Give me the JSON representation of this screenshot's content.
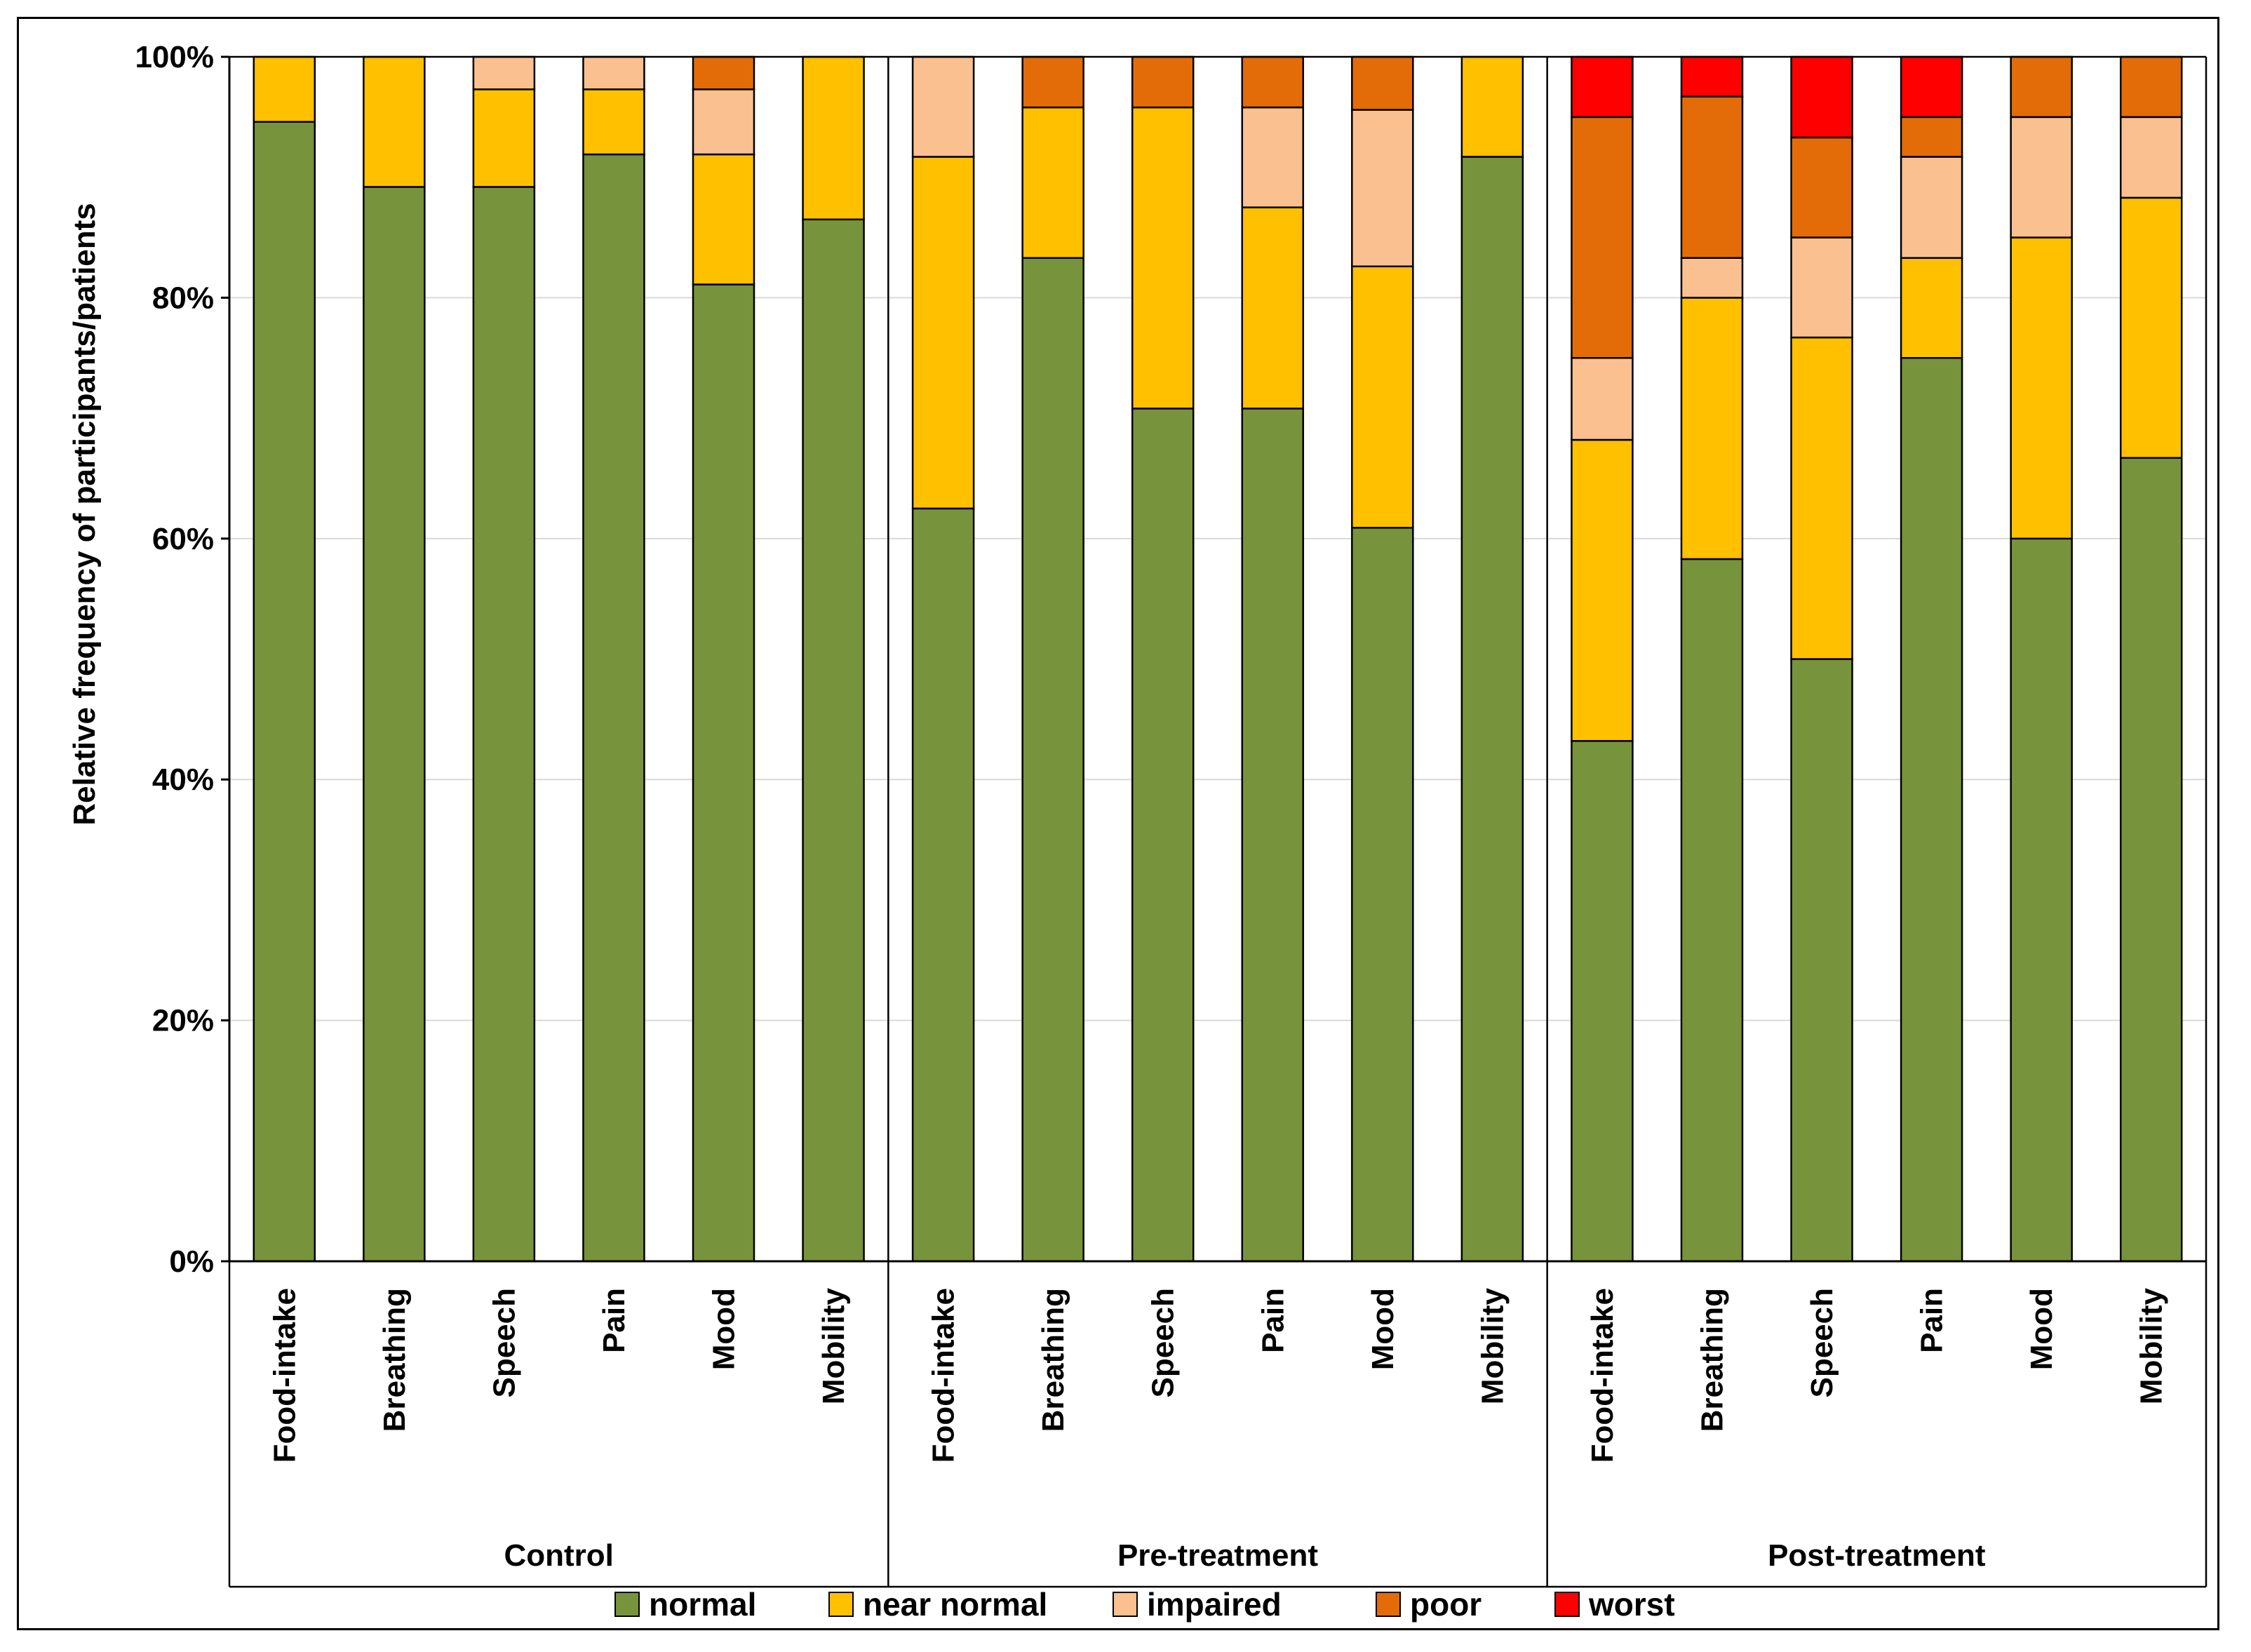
{
  "chart_data": {
    "type": "bar",
    "stacked": true,
    "ylabel": "Relative frequency of participants/patients",
    "xlabel": "",
    "ylim": [
      0,
      100
    ],
    "yticks": [
      0,
      20,
      40,
      60,
      80,
      100
    ],
    "ytick_suffix": "%",
    "legend_position": "bottom",
    "groups": [
      {
        "name": "Control",
        "categories": [
          "Food-intake",
          "Breathing",
          "Speech",
          "Pain",
          "Mood",
          "Mobility"
        ],
        "series": {
          "normal": [
            94.6,
            89.2,
            89.2,
            91.9,
            81.1,
            86.5
          ],
          "near normal": [
            5.4,
            10.8,
            8.1,
            5.4,
            10.8,
            13.5
          ],
          "impaired": [
            0,
            0,
            2.7,
            2.7,
            5.4,
            0
          ],
          "poor": [
            0,
            0,
            0,
            0,
            2.7,
            0
          ],
          "worst": [
            0,
            0,
            0,
            0,
            0,
            0
          ]
        }
      },
      {
        "name": "Pre-treatment",
        "categories": [
          "Food-intake",
          "Breathing",
          "Speech",
          "Pain",
          "Mood",
          "Mobility"
        ],
        "series": {
          "normal": [
            62.5,
            83.3,
            70.8,
            70.8,
            60.9,
            91.7
          ],
          "near normal": [
            29.2,
            12.5,
            25.0,
            16.7,
            21.7,
            8.3
          ],
          "impaired": [
            8.3,
            0,
            0,
            8.3,
            13.0,
            0
          ],
          "poor": [
            0,
            4.2,
            4.2,
            4.2,
            4.4,
            0
          ],
          "worst": [
            0,
            0,
            0,
            0,
            0,
            0
          ]
        }
      },
      {
        "name": "Post-treatment",
        "categories": [
          "Food-intake",
          "Breathing",
          "Speech",
          "Pain",
          "Mood",
          "Mobility"
        ],
        "series": {
          "normal": [
            43.2,
            58.3,
            50.0,
            75.0,
            60.0,
            66.7
          ],
          "near normal": [
            25.0,
            21.7,
            26.7,
            8.3,
            25.0,
            21.6
          ],
          "impaired": [
            6.8,
            3.3,
            8.3,
            8.4,
            10.0,
            6.7
          ],
          "poor": [
            20.0,
            13.4,
            8.3,
            3.3,
            5.0,
            5.0
          ],
          "worst": [
            5.0,
            3.3,
            6.7,
            5.0,
            0,
            0
          ]
        }
      }
    ],
    "series_order": [
      "normal",
      "near normal",
      "impaired",
      "poor",
      "worst"
    ],
    "colors": {
      "normal": "#77933c",
      "near normal": "#ffc000",
      "impaired": "#fac090",
      "poor": "#e36c09",
      "worst": "#ff0000"
    },
    "legend": [
      "normal",
      "near normal",
      "impaired",
      "poor",
      "worst"
    ]
  }
}
